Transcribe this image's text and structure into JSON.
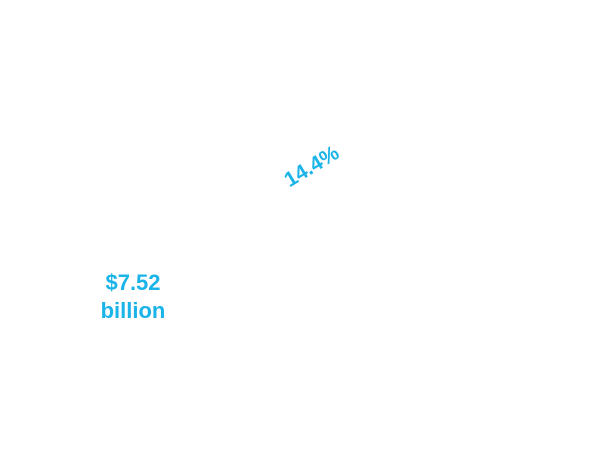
{
  "annotations": [
    "14.4%",
    "$7.52 billion"
  ]
}
